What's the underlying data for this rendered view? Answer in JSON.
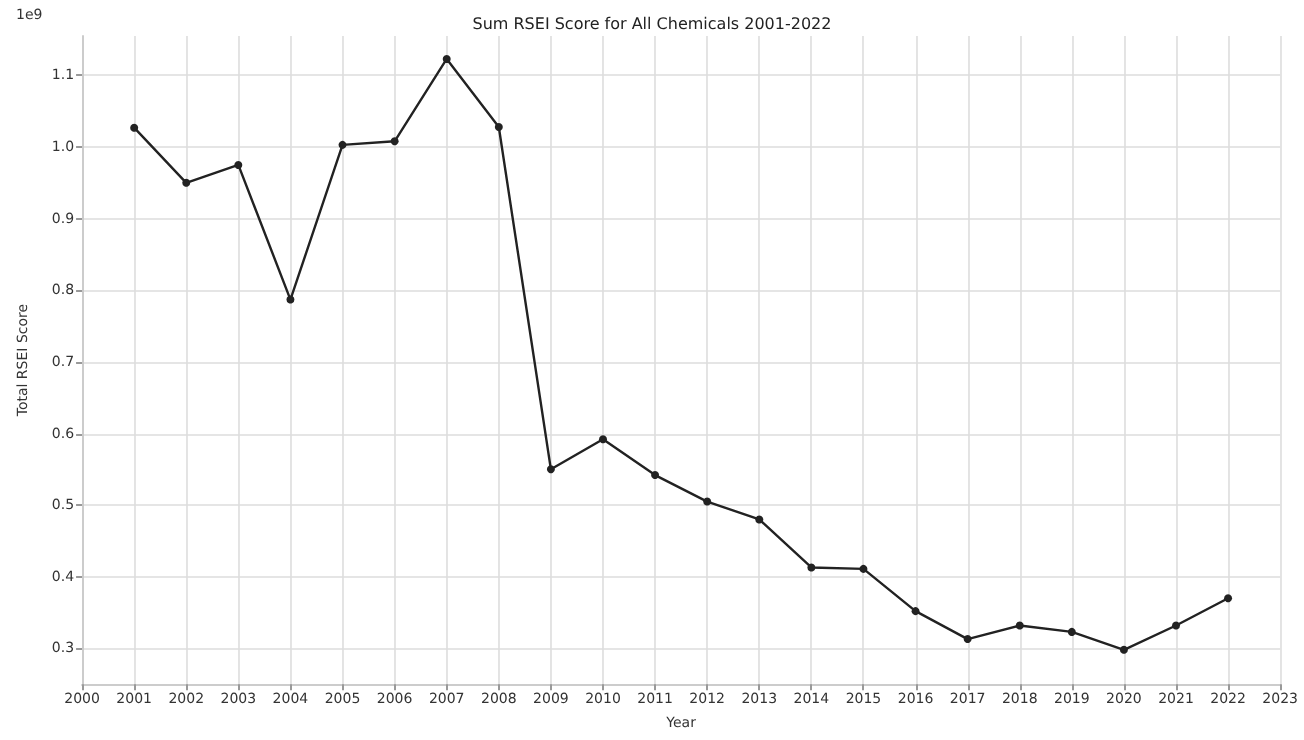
{
  "chart_data": {
    "type": "line",
    "title": "Sum RSEI Score for All Chemicals 2001-2022",
    "xlabel": "Year",
    "ylabel": "Total RSEI Score",
    "annotations": [
      "1e9"
    ],
    "x": [
      2001,
      2002,
      2003,
      2004,
      2005,
      2006,
      2007,
      2008,
      2009,
      2010,
      2011,
      2012,
      2013,
      2014,
      2015,
      2016,
      2017,
      2018,
      2019,
      2020,
      2021,
      2022
    ],
    "series": [
      {
        "color": "#222222",
        "values": [
          1.027,
          0.95,
          0.975,
          0.787,
          1.003,
          1.008,
          1.123,
          1.028,
          0.55,
          0.592,
          0.542,
          0.505,
          0.48,
          0.413,
          0.411,
          0.352,
          0.313,
          0.332,
          0.323,
          0.298,
          0.332,
          0.37
        ]
      }
    ],
    "xlim": [
      2000,
      2023
    ],
    "xticks": [
      2000,
      2001,
      2002,
      2003,
      2004,
      2005,
      2006,
      2007,
      2008,
      2009,
      2010,
      2011,
      2012,
      2013,
      2014,
      2015,
      2016,
      2017,
      2018,
      2019,
      2020,
      2021,
      2022,
      2023
    ],
    "ylim": [
      0.25,
      1.155
    ],
    "yticks": [
      {
        "value": 0.3,
        "label": "0.3"
      },
      {
        "value": 0.4,
        "label": "0.4"
      },
      {
        "value": 0.5,
        "label": "0.5"
      },
      {
        "value": 0.6,
        "label": "0.6"
      },
      {
        "value": 0.7,
        "label": "0.7"
      },
      {
        "value": 0.8,
        "label": "0.8"
      },
      {
        "value": 0.9,
        "label": "0.9"
      },
      {
        "value": 1.0,
        "label": "1.0"
      },
      {
        "value": 1.1,
        "label": "1.1"
      }
    ],
    "grid": true,
    "marker": "circle",
    "line_style": "solid"
  }
}
